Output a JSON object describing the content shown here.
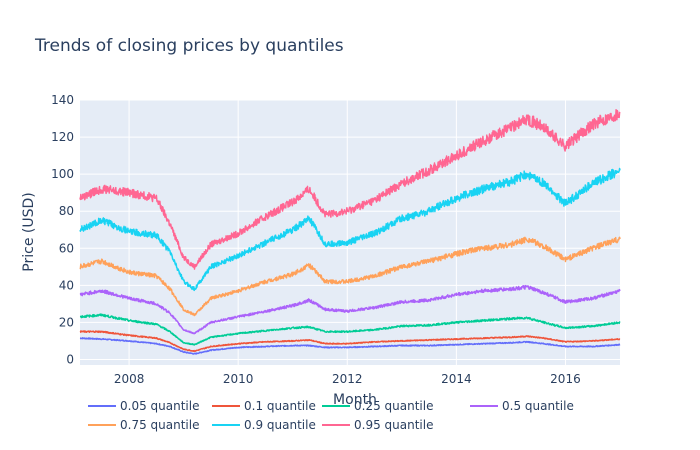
{
  "chart_data": {
    "type": "line",
    "title": "Trends of closing prices by quantiles",
    "xlabel": "Month",
    "ylabel": "Price (USD)",
    "xlim": [
      2007.1,
      2017.0
    ],
    "ylim": [
      -3,
      140
    ],
    "x_ticks": [
      2008,
      2010,
      2012,
      2014,
      2016
    ],
    "y_ticks": [
      0,
      20,
      40,
      60,
      80,
      100,
      120,
      140
    ],
    "grid": true,
    "legend_position": "bottom",
    "series": [
      {
        "name": "0.05 quantile",
        "color": "#636efa",
        "x": [
          2007.1,
          2007.5,
          2008.0,
          2008.5,
          2008.75,
          2009.0,
          2009.2,
          2009.5,
          2010.0,
          2010.5,
          2011.0,
          2011.3,
          2011.6,
          2012.0,
          2012.5,
          2013.0,
          2013.5,
          2014.0,
          2014.5,
          2015.0,
          2015.3,
          2015.6,
          2016.0,
          2016.5,
          2017.0
        ],
        "y": [
          11.5,
          11,
          10,
          8.5,
          7,
          4,
          3,
          5,
          6.5,
          7,
          7.5,
          7.5,
          6.5,
          6.5,
          7,
          7.5,
          7.5,
          8,
          8.5,
          9,
          9.5,
          8.5,
          7,
          7,
          8
        ]
      },
      {
        "name": "0.1 quantile",
        "color": "#ef553b",
        "x": [
          2007.1,
          2007.5,
          2008.0,
          2008.5,
          2008.75,
          2009.0,
          2009.2,
          2009.5,
          2010.0,
          2010.5,
          2011.0,
          2011.3,
          2011.6,
          2012.0,
          2012.5,
          2013.0,
          2013.5,
          2014.0,
          2014.5,
          2015.0,
          2015.3,
          2015.6,
          2016.0,
          2016.5,
          2017.0
        ],
        "y": [
          15,
          15,
          13,
          11.5,
          9,
          5.5,
          4.5,
          7,
          8.5,
          9.5,
          10,
          10.5,
          8.5,
          8.5,
          9.5,
          10,
          10.5,
          11,
          11.5,
          12,
          12.5,
          11.5,
          9.5,
          10,
          11
        ]
      },
      {
        "name": "0.25 quantile",
        "color": "#00cc96",
        "x": [
          2007.1,
          2007.5,
          2008.0,
          2008.5,
          2008.75,
          2009.0,
          2009.2,
          2009.5,
          2010.0,
          2010.5,
          2011.0,
          2011.3,
          2011.6,
          2012.0,
          2012.5,
          2013.0,
          2013.5,
          2014.0,
          2014.5,
          2015.0,
          2015.3,
          2015.6,
          2016.0,
          2016.5,
          2017.0
        ],
        "y": [
          23,
          24,
          21,
          19,
          15,
          9,
          8,
          12,
          14,
          15.5,
          17,
          17.5,
          15,
          15,
          16,
          18,
          18.5,
          20,
          21,
          22,
          22.5,
          20,
          17,
          18,
          20
        ]
      },
      {
        "name": "0.5 quantile",
        "color": "#ab63fa",
        "x": [
          2007.1,
          2007.5,
          2008.0,
          2008.5,
          2008.75,
          2009.0,
          2009.2,
          2009.5,
          2010.0,
          2010.5,
          2011.0,
          2011.3,
          2011.6,
          2012.0,
          2012.5,
          2013.0,
          2013.5,
          2014.0,
          2014.5,
          2015.0,
          2015.3,
          2015.6,
          2016.0,
          2016.5,
          2017.0
        ],
        "y": [
          35,
          37,
          33,
          30,
          25,
          16,
          14,
          20,
          23,
          26,
          29,
          32,
          27,
          26,
          28,
          31,
          32,
          35,
          37,
          38,
          39,
          36,
          31,
          33,
          37
        ]
      },
      {
        "name": "0.75 quantile",
        "color": "#ffa15a",
        "x": [
          2007.1,
          2007.5,
          2008.0,
          2008.5,
          2008.75,
          2009.0,
          2009.2,
          2009.5,
          2010.0,
          2010.5,
          2011.0,
          2011.3,
          2011.6,
          2012.0,
          2012.5,
          2013.0,
          2013.5,
          2014.0,
          2014.5,
          2015.0,
          2015.3,
          2015.6,
          2016.0,
          2016.5,
          2017.0
        ],
        "y": [
          50,
          53,
          47,
          45,
          38,
          27,
          24,
          33,
          37,
          42,
          46,
          51,
          42,
          42,
          45,
          50,
          53,
          57,
          60,
          62,
          65,
          61,
          54,
          60,
          65
        ]
      },
      {
        "name": "0.9 quantile",
        "color": "#19d3f3",
        "x": [
          2007.1,
          2007.5,
          2008.0,
          2008.5,
          2008.75,
          2009.0,
          2009.2,
          2009.5,
          2010.0,
          2010.5,
          2011.0,
          2011.3,
          2011.6,
          2012.0,
          2012.5,
          2013.0,
          2013.5,
          2014.0,
          2014.5,
          2015.0,
          2015.3,
          2015.6,
          2016.0,
          2016.5,
          2017.0
        ],
        "y": [
          70,
          75,
          69,
          67,
          58,
          42,
          38,
          50,
          56,
          63,
          70,
          76,
          62,
          63,
          68,
          76,
          80,
          87,
          92,
          96,
          100,
          95,
          84,
          95,
          102
        ]
      },
      {
        "name": "0.95 quantile",
        "color": "#ff6692",
        "x": [
          2007.1,
          2007.5,
          2008.0,
          2008.5,
          2008.75,
          2009.0,
          2009.2,
          2009.5,
          2010.0,
          2010.5,
          2011.0,
          2011.3,
          2011.6,
          2012.0,
          2012.5,
          2013.0,
          2013.5,
          2014.0,
          2014.5,
          2015.0,
          2015.3,
          2015.6,
          2016.0,
          2016.5,
          2017.0
        ],
        "y": [
          87,
          92,
          90,
          87,
          73,
          55,
          50,
          62,
          68,
          77,
          85,
          92,
          78,
          80,
          86,
          95,
          102,
          110,
          118,
          125,
          130,
          125,
          115,
          127,
          133
        ]
      }
    ]
  }
}
